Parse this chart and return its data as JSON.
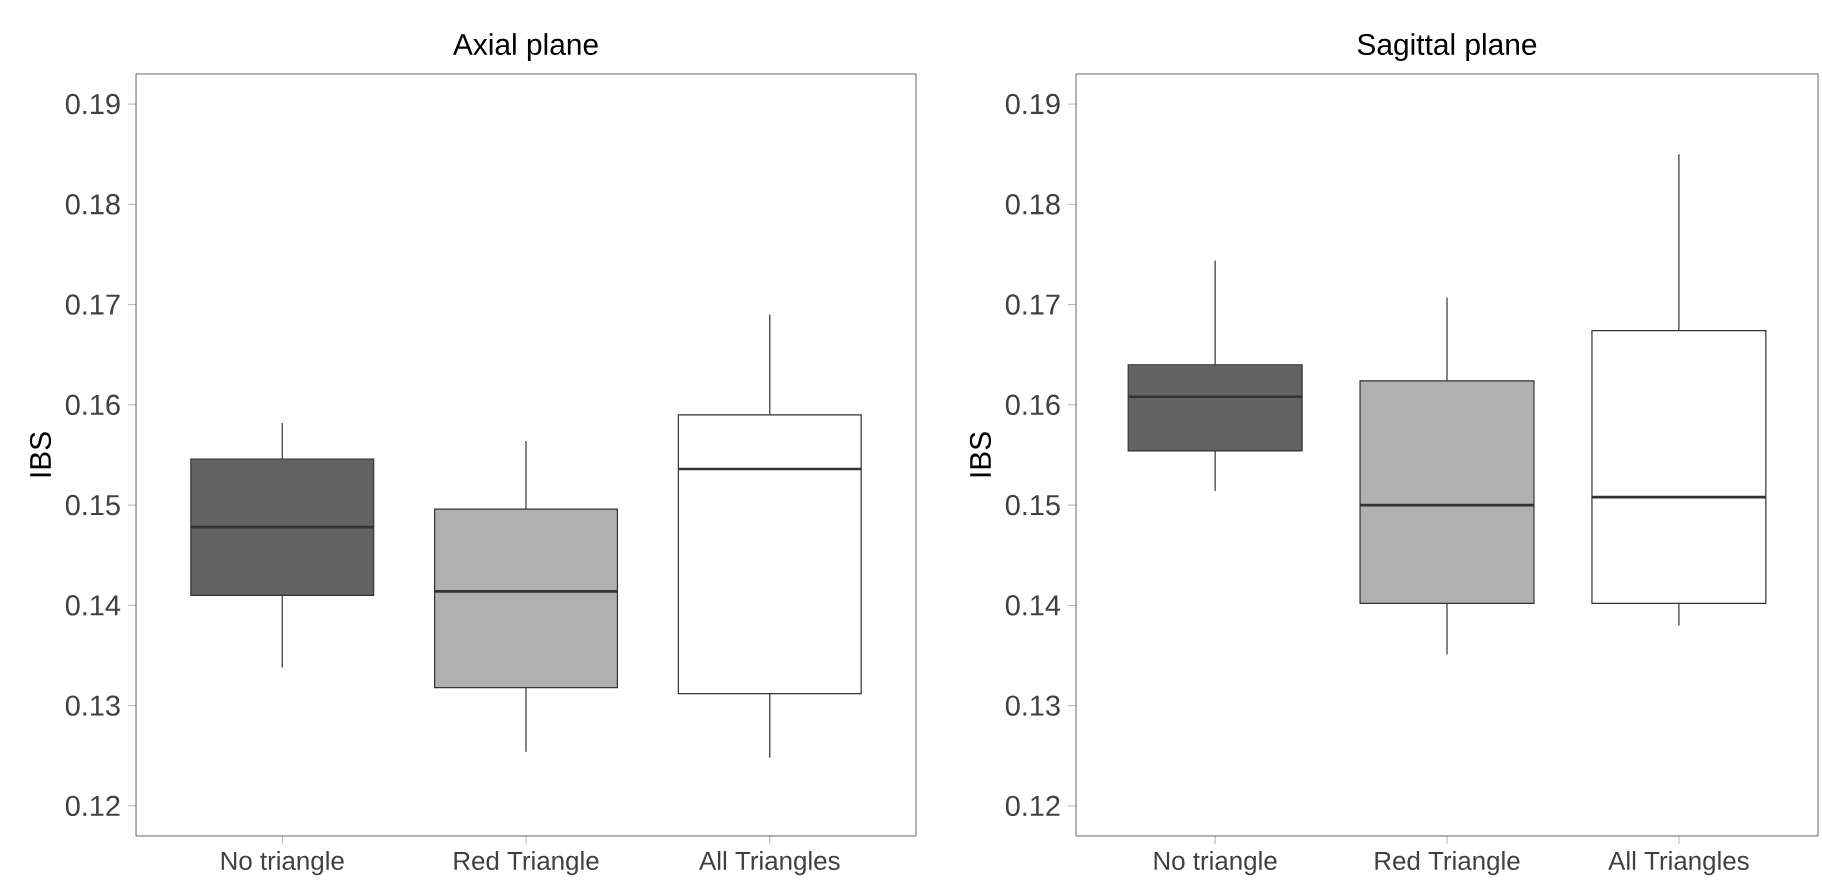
{
  "chart_data": [
    {
      "type": "box",
      "title": "Axial plane",
      "ylabel": "IBS",
      "categories": [
        "No triangle",
        "Red Triangle",
        "All Triangles"
      ],
      "colors": [
        "#636363",
        "#b0b0b0",
        "#ffffff"
      ],
      "ylim": [
        0.117,
        0.193
      ],
      "yticks": [
        0.12,
        0.13,
        0.14,
        0.15,
        0.16,
        0.17,
        0.18,
        0.19
      ],
      "grid": false,
      "boxes": [
        {
          "low": 0.1338,
          "q1": 0.141,
          "median": 0.1478,
          "q3": 0.1546,
          "high": 0.1582
        },
        {
          "low": 0.1254,
          "q1": 0.1318,
          "median": 0.1414,
          "q3": 0.1496,
          "high": 0.1564
        },
        {
          "low": 0.1248,
          "q1": 0.1312,
          "median": 0.1536,
          "q3": 0.159,
          "high": 0.169
        }
      ]
    },
    {
      "type": "box",
      "title": "Sagittal plane",
      "ylabel": "IBS",
      "categories": [
        "No triangle",
        "Red Triangle",
        "All Triangles"
      ],
      "colors": [
        "#636363",
        "#b0b0b0",
        "#ffffff"
      ],
      "ylim": [
        0.117,
        0.193
      ],
      "yticks": [
        0.12,
        0.13,
        0.14,
        0.15,
        0.16,
        0.17,
        0.18,
        0.19
      ],
      "grid": false,
      "boxes": [
        {
          "low": 0.1514,
          "q1": 0.1554,
          "median": 0.1608,
          "q3": 0.164,
          "high": 0.1744
        },
        {
          "low": 0.1351,
          "q1": 0.1402,
          "median": 0.15,
          "q3": 0.1624,
          "high": 0.1707
        },
        {
          "low": 0.138,
          "q1": 0.1402,
          "median": 0.1508,
          "q3": 0.1674,
          "high": 0.185
        }
      ]
    }
  ]
}
